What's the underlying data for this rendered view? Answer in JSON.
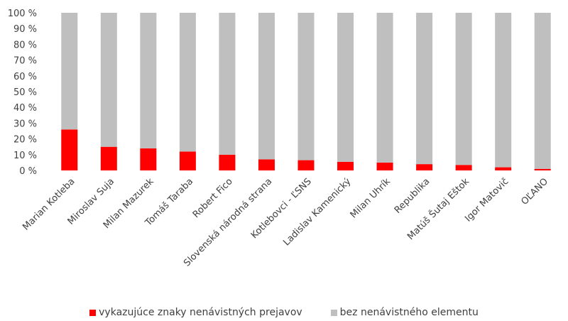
{
  "chart_data": {
    "type": "bar",
    "stacked": true,
    "categories": [
      "Marian Kotleba",
      "Miroslav Suja",
      "Milan Mazurek",
      "Tomáš Taraba",
      "Robert Fico",
      "Slovenská národná strana",
      "Kotlebovci - ĽSNS",
      "Ladislav Kamenický",
      "Milan Uhrík",
      "Republika",
      "Matúš Šutaj Eštok",
      "Igor Matovič",
      "OĽANO"
    ],
    "series": [
      {
        "name": "vykazujúce znaky nenávistných prejavov",
        "color": "#ff0000",
        "values": [
          26,
          15,
          14,
          12,
          10,
          7,
          6.5,
          5.5,
          5,
          4,
          3.5,
          2,
          1
        ]
      },
      {
        "name": "bez nenávistného elementu",
        "color": "#bfbfbf",
        "values": [
          74,
          85,
          86,
          88,
          90,
          93,
          93.5,
          94.5,
          95,
          96,
          96.5,
          98,
          99
        ]
      }
    ],
    "yticks": [
      "0 %",
      "10 %",
      "20 %",
      "30 %",
      "40 %",
      "50 %",
      "60 %",
      "70 %",
      "80 %",
      "90 %",
      "100 %"
    ],
    "ylim": [
      0,
      100
    ],
    "grid": false,
    "legend_position": "bottom"
  }
}
